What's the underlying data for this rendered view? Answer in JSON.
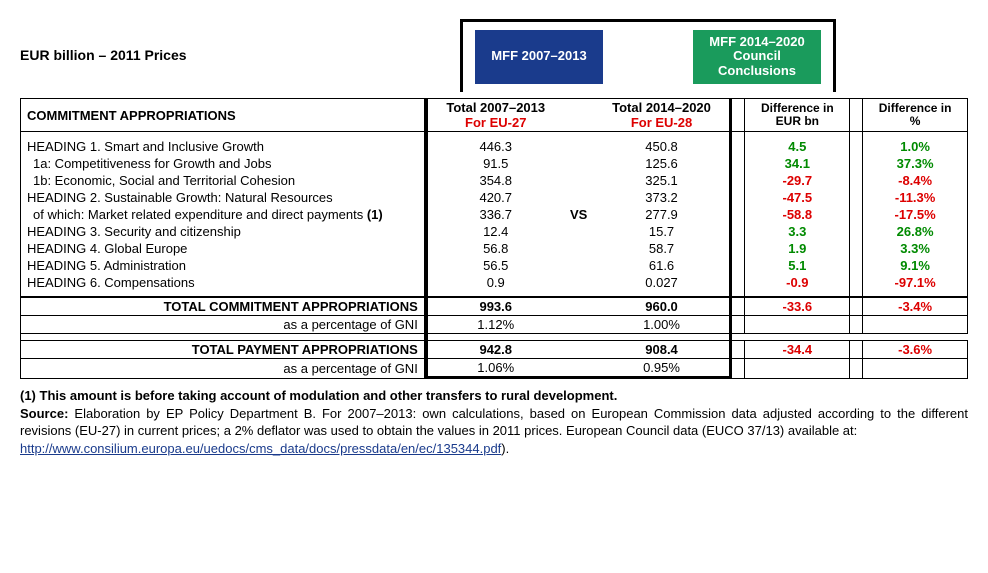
{
  "title": "EUR billion – 2011 Prices",
  "header_boxes": {
    "left": "MFF 2007–2013",
    "right": "MFF 2014–2020 Council Conclusions"
  },
  "colheads": {
    "label": "COMMITMENT APPROPRIATIONS",
    "c1_top": "Total 2007–2013",
    "c1_sub": "For EU-27",
    "c2_top": "Total 2014–2020",
    "c2_sub": "For EU-28",
    "vs": "VS",
    "d1_top": "Difference in",
    "d1_sub": "EUR bn",
    "d2_top": "Difference in",
    "d2_sub": "%"
  },
  "rows": [
    {
      "label": "HEADING 1. Smart and Inclusive Growth",
      "indent": 0,
      "c1": "446.3",
      "c2": "450.8",
      "d1": "4.5",
      "d2": "1.0%",
      "dir": "pos"
    },
    {
      "label": "1a: Competitiveness for Growth and Jobs",
      "indent": 1,
      "c1": "91.5",
      "c2": "125.6",
      "d1": "34.1",
      "d2": "37.3%",
      "dir": "pos"
    },
    {
      "label": "1b: Economic, Social and Territorial Cohesion",
      "indent": 1,
      "c1": "354.8",
      "c2": "325.1",
      "d1": "-29.7",
      "d2": "-8.4%",
      "dir": "neg"
    },
    {
      "label": "HEADING 2. Sustainable Growth: Natural Resources",
      "indent": 0,
      "c1": "420.7",
      "c2": "373.2",
      "d1": "-47.5",
      "d2": "-11.3%",
      "dir": "neg"
    },
    {
      "label": "of which: Market related expenditure and direct payments (1)",
      "indent": 1,
      "c1": "336.7",
      "c2": "277.9",
      "d1": "-58.8",
      "d2": "-17.5%",
      "dir": "neg",
      "show_vs": true
    },
    {
      "label": "HEADING 3. Security and citizenship",
      "indent": 0,
      "c1": "12.4",
      "c2": "15.7",
      "d1": "3.3",
      "d2": "26.8%",
      "dir": "pos"
    },
    {
      "label": "HEADING 4. Global Europe",
      "indent": 0,
      "c1": "56.8",
      "c2": "58.7",
      "d1": "1.9",
      "d2": "3.3%",
      "dir": "pos"
    },
    {
      "label": "HEADING 5. Administration",
      "indent": 0,
      "c1": "56.5",
      "c2": "61.6",
      "d1": "5.1",
      "d2": "9.1%",
      "dir": "pos"
    },
    {
      "label": "HEADING 6. Compensations",
      "indent": 0,
      "c1": "0.9",
      "c2": "0.027",
      "d1": "-0.9",
      "d2": "-97.1%",
      "dir": "neg"
    }
  ],
  "totals": {
    "commit": {
      "label": "TOTAL COMMITMENT APPROPRIATIONS",
      "c1": "993.6",
      "c2": "960.0",
      "d1": "-33.6",
      "d2": "-3.4%"
    },
    "commit_gni": {
      "label": "as a percentage of GNI",
      "c1": "1.12%",
      "c2": "1.00%"
    },
    "payment": {
      "label": "TOTAL PAYMENT APPROPRIATIONS",
      "c1": "942.8",
      "c2": "908.4",
      "d1": "-34.4",
      "d2": "-3.6%"
    },
    "payment_gni": {
      "label": "as a percentage of GNI",
      "c1": "1.06%",
      "c2": "0.95%"
    }
  },
  "footnote": {
    "line1": "(1) This amount is before taking account of modulation and other transfers to rural development.",
    "source_label": "Source:",
    "source_text": " Elaboration by EP Policy Department B. For 2007–2013: own calculations, based on European Commission data adjusted according to the different revisions (EU-27) in current prices; a 2% deflator was used to obtain the values in 2011 prices. European Council data (EUCO 37/13) available at:",
    "link": "http://www.consilium.europa.eu/uedocs/cms_data/docs/pressdata/en/ec/135344.pdf",
    "close": ")."
  }
}
